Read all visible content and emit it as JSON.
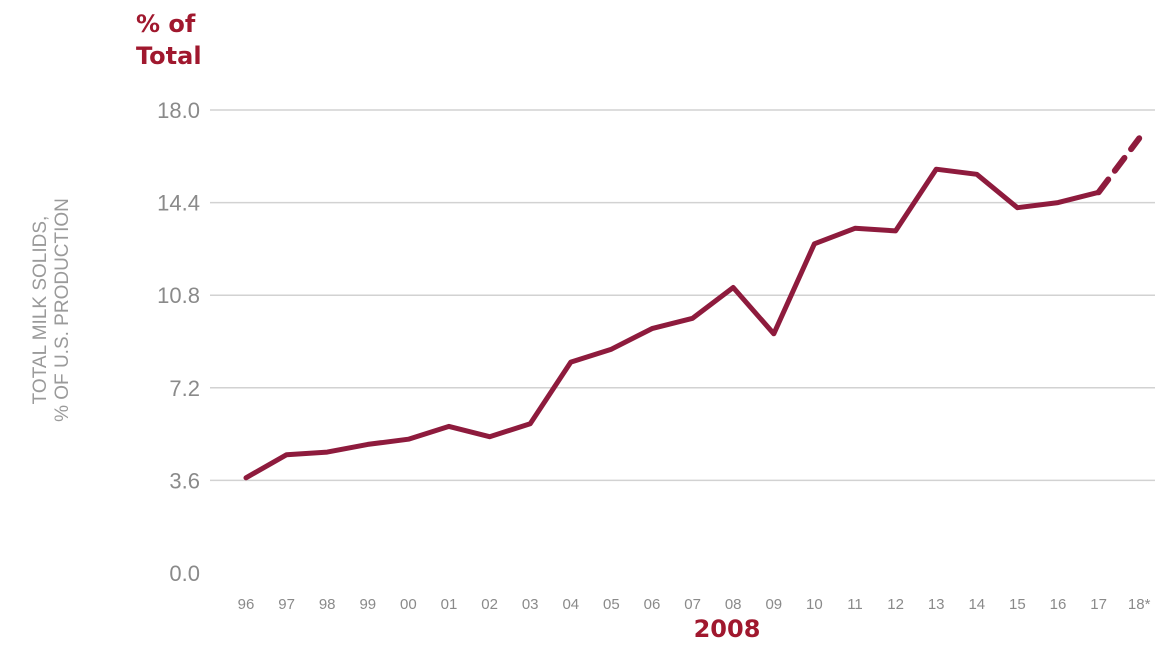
{
  "annotations": {
    "unit_label_line1": "% of",
    "unit_label_line2": "Total",
    "highlight_year": "2008"
  },
  "chart_data": {
    "type": "line",
    "title": "",
    "ylabel_line1": "TOTAL MILK SOLIDS,",
    "ylabel_line2": "% OF U.S. PRODUCTION",
    "xlabel": "",
    "ylim": [
      0,
      18
    ],
    "yticks": [
      0.0,
      3.6,
      7.2,
      10.8,
      14.4,
      18.0
    ],
    "ytick_labels": [
      "0.0",
      "3.6",
      "7.2",
      "10.8",
      "14.4",
      "18.0"
    ],
    "grid": true,
    "categories": [
      "96",
      "97",
      "98",
      "99",
      "00",
      "01",
      "02",
      "03",
      "04",
      "05",
      "06",
      "07",
      "08",
      "09",
      "10",
      "11",
      "12",
      "13",
      "14",
      "15",
      "16",
      "17",
      "18*"
    ],
    "series": [
      {
        "values": [
          3.7,
          4.6,
          4.7,
          5.0,
          5.2,
          5.7,
          5.3,
          5.8,
          8.2,
          8.7,
          9.5,
          9.9,
          11.1,
          9.3,
          12.8,
          13.4,
          13.3,
          15.7,
          15.5,
          14.2,
          14.4,
          14.8,
          16.9
        ],
        "projected_from_index": 21,
        "color": "#8e1b3d"
      }
    ]
  }
}
